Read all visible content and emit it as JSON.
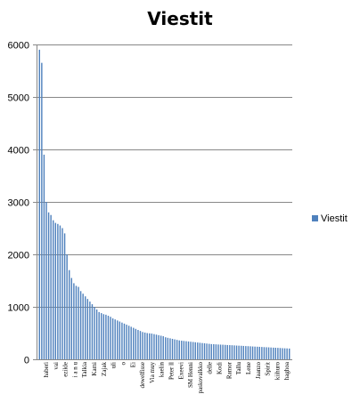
{
  "chart_data": {
    "type": "bar",
    "title": "Viestit",
    "legend": {
      "position": "right",
      "entries": [
        "Viestit"
      ]
    },
    "grid": true,
    "ylim": [
      0,
      6000
    ],
    "yticks": [
      0,
      1000,
      2000,
      3000,
      4000,
      5000,
      6000
    ],
    "bar_color": "#4f81bd",
    "x_tick_labels": [
      "haberi",
      "vai",
      "ezikle",
      "i a n u",
      "Talkia",
      "Kami",
      "Zajak",
      "uli",
      "o",
      "Ei",
      "dewelfisse",
      "Via muy",
      "kaelin",
      "Peter ll",
      "Exeevi",
      "SM Henni",
      "paskovalkko",
      "delle",
      "Kodi",
      "Ramor",
      "Tallu",
      "Lene",
      "Jaanzo",
      "Spirit",
      "kiihuro",
      "haghoa"
    ],
    "series": [
      {
        "name": "Viestit",
        "values": [
          5900,
          5650,
          3900,
          3000,
          2800,
          2750,
          2650,
          2600,
          2580,
          2550,
          2500,
          2400,
          2000,
          1700,
          1550,
          1450,
          1400,
          1380,
          1300,
          1250,
          1200,
          1150,
          1100,
          1050,
          1000,
          950,
          900,
          880,
          860,
          850,
          830,
          810,
          780,
          760,
          740,
          720,
          700,
          680,
          660,
          640,
          620,
          600,
          580,
          560,
          540,
          520,
          510,
          500,
          495,
          490,
          480,
          470,
          460,
          450,
          440,
          420,
          410,
          400,
          390,
          380,
          370,
          360,
          355,
          350,
          345,
          340,
          335,
          330,
          325,
          320,
          315,
          310,
          305,
          300,
          295,
          290,
          288,
          285,
          282,
          280,
          278,
          275,
          272,
          270,
          268,
          265,
          262,
          260,
          258,
          255,
          252,
          250,
          248,
          245,
          242,
          240,
          238,
          235,
          232,
          230,
          228,
          225,
          222,
          220,
          218,
          215,
          212,
          210,
          208,
          205
        ]
      }
    ]
  }
}
